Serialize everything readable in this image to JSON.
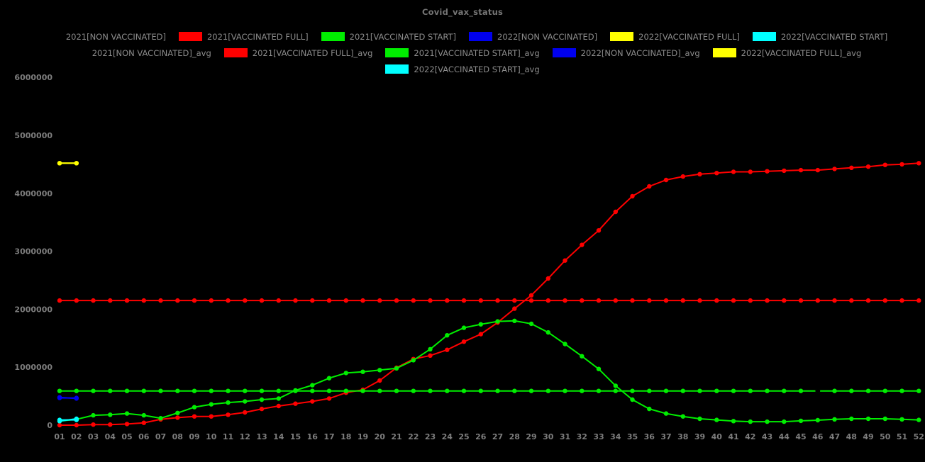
{
  "chart_data": {
    "type": "line",
    "title": "Covid_vax_status",
    "background": "#000000",
    "axis_text_color": "#7d7d7d",
    "legend_text_color": "#8c8c8c",
    "title_color": "#757575",
    "grid": false,
    "legend_position": "top",
    "xlabel": "",
    "ylabel": "",
    "ylim": [
      0,
      6000000
    ],
    "yticks": [
      0,
      1000000,
      2000000,
      3000000,
      4000000,
      5000000,
      6000000
    ],
    "x_categories": [
      "01",
      "02",
      "03",
      "04",
      "05",
      "06",
      "07",
      "08",
      "09",
      "10",
      "11",
      "12",
      "13",
      "14",
      "15",
      "16",
      "17",
      "18",
      "19",
      "20",
      "21",
      "22",
      "23",
      "24",
      "25",
      "26",
      "27",
      "28",
      "29",
      "30",
      "31",
      "32",
      "33",
      "34",
      "35",
      "36",
      "37",
      "38",
      "39",
      "40",
      "41",
      "42",
      "43",
      "44",
      "45",
      "46",
      "47",
      "48",
      "49",
      "50",
      "51",
      "52"
    ],
    "legend_rows": [
      [
        0,
        1,
        2,
        3,
        4,
        5
      ],
      [
        6,
        7,
        8,
        9,
        10
      ],
      [
        11
      ]
    ],
    "series": [
      {
        "name": "2021[NON VACCINATED]",
        "color": "#000000",
        "start_week": 1,
        "values": []
      },
      {
        "name": "2021[VACCINATED FULL]",
        "color": "#ff0000",
        "start_week": 1,
        "values": [
          0,
          0,
          10000,
          10000,
          20000,
          40000,
          100000,
          130000,
          150000,
          150000,
          180000,
          220000,
          280000,
          330000,
          370000,
          410000,
          460000,
          560000,
          610000,
          770000,
          990000,
          1140000,
          1200000,
          1300000,
          1440000,
          1570000,
          1770000,
          2010000,
          2240000,
          2530000,
          2840000,
          3110000,
          3360000,
          3680000,
          3950000,
          4120000,
          4230000,
          4290000,
          4330000,
          4350000,
          4370000,
          4370000,
          4380000,
          4390000,
          4400000,
          4400000,
          4420000,
          4440000,
          4460000,
          4490000,
          4500000,
          4520000
        ]
      },
      {
        "name": "2021[VACCINATED START]",
        "color": "#00ee00",
        "start_week": 1,
        "values": [
          70000,
          100000,
          170000,
          180000,
          200000,
          170000,
          120000,
          210000,
          310000,
          360000,
          390000,
          410000,
          440000,
          460000,
          600000,
          690000,
          810000,
          900000,
          920000,
          950000,
          980000,
          1120000,
          1310000,
          1550000,
          1680000,
          1740000,
          1790000,
          1800000,
          1750000,
          1600000,
          1400000,
          1190000,
          970000,
          680000,
          440000,
          280000,
          200000,
          150000,
          110000,
          90000,
          70000,
          60000,
          60000,
          60000,
          75000,
          85000,
          100000,
          110000,
          110000,
          110000,
          100000,
          90000
        ]
      },
      {
        "name": "2022[NON VACCINATED]",
        "color": "#0000ee",
        "start_week": 1,
        "values": [
          480000,
          460000
        ]
      },
      {
        "name": "2022[VACCINATED FULL]",
        "color": "#ffff00",
        "start_week": 1,
        "values": [
          4520000,
          4520000
        ]
      },
      {
        "name": "2022[VACCINATED START]",
        "color": "#00ffff",
        "start_week": 1,
        "values": [
          70000,
          110000
        ]
      },
      {
        "name": "2021[NON VACCINATED]_avg",
        "color": "#000000",
        "start_week": 1,
        "values": []
      },
      {
        "name": "2021[VACCINATED FULL]_avg",
        "color": "#ff0000",
        "flat_value": 2150000,
        "from_week": 1,
        "to_week": 52
      },
      {
        "name": "2021[VACCINATED START]_avg",
        "color": "#00ee00",
        "flat_value": 590000,
        "from_week": 1,
        "to_week": 52
      },
      {
        "name": "2022[NON VACCINATED]_avg",
        "color": "#0000ee",
        "start_week": 1,
        "values": [
          470000,
          470000
        ]
      },
      {
        "name": "2022[VACCINATED FULL]_avg",
        "color": "#ffff00",
        "start_week": 1,
        "values": [
          4520000,
          4520000
        ]
      },
      {
        "name": "2022[VACCINATED START]_avg",
        "color": "#00ffff",
        "start_week": 1,
        "values": [
          90000,
          90000
        ]
      }
    ],
    "artifacts": [
      {
        "name": "hidden-series-marker",
        "week": 46,
        "value": 590000,
        "color": "#000000"
      }
    ]
  }
}
